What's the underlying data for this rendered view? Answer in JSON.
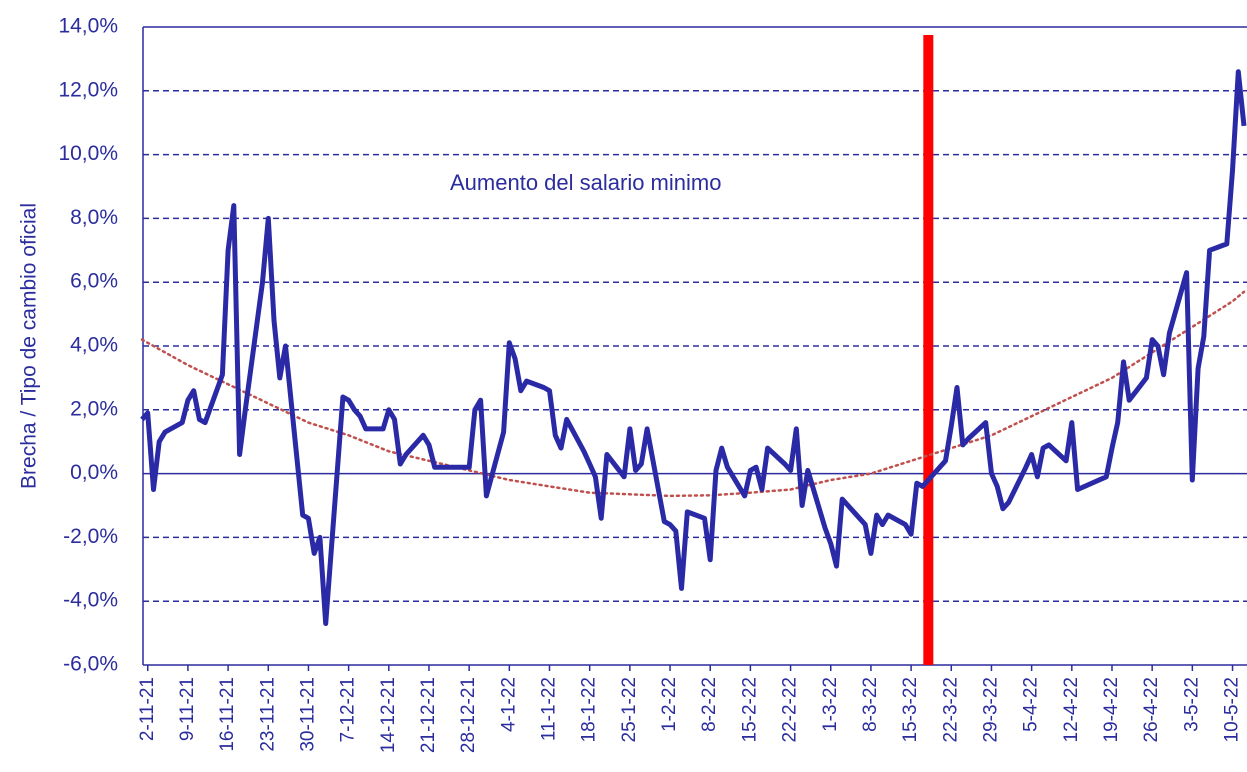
{
  "chart_data": {
    "type": "line",
    "y_label": "Brecha / Tipo de cambio oficial",
    "xlim": [
      "1-11-21",
      "12-5-22"
    ],
    "xticks": [
      "2-11-21",
      "9-11-21",
      "16-11-21",
      "23-11-21",
      "30-11-21",
      "7-12-21",
      "14-12-21",
      "21-12-21",
      "28-12-21",
      "4-1-22",
      "11-1-22",
      "18-1-22",
      "25-1-22",
      "1-2-22",
      "8-2-22",
      "15-2-22",
      "22-2-22",
      "1-3-22",
      "8-3-22",
      "15-3-22",
      "22-3-22",
      "29-3-22",
      "5-4-22",
      "12-4-22",
      "19-4-22",
      "26-4-22",
      "3-5-22",
      "10-5-22"
    ],
    "ylim": [
      -6,
      14
    ],
    "yticks": [
      {
        "value": -6,
        "label": "-6,0%"
      },
      {
        "value": -4,
        "label": "-4,0%"
      },
      {
        "value": -2,
        "label": "-2,0%"
      },
      {
        "value": 0,
        "label": "0,0%"
      },
      {
        "value": 2,
        "label": "2,0%"
      },
      {
        "value": 4,
        "label": "4,0%"
      },
      {
        "value": 6,
        "label": "6,0%"
      },
      {
        "value": 8,
        "label": "8,0%"
      },
      {
        "value": 10,
        "label": "10,0%"
      },
      {
        "value": 12,
        "label": "12,0%"
      },
      {
        "value": 14,
        "label": "14,0%"
      }
    ],
    "grid": true,
    "x": [
      "1-11-21",
      "2-11-21",
      "3-11-21",
      "4-11-21",
      "5-11-21",
      "8-11-21",
      "9-11-21",
      "10-11-21",
      "11-11-21",
      "12-11-21",
      "15-11-21",
      "16-11-21",
      "17-11-21",
      "18-11-21",
      "19-11-21",
      "22-11-21",
      "23-11-21",
      "24-11-21",
      "25-11-21",
      "26-11-21",
      "29-11-21",
      "30-11-21",
      "1-12-21",
      "2-12-21",
      "3-12-21",
      "6-12-21",
      "7-12-21",
      "8-12-21",
      "9-12-21",
      "10-12-21",
      "13-12-21",
      "14-12-21",
      "15-12-21",
      "16-12-21",
      "17-12-21",
      "20-12-21",
      "21-12-21",
      "22-12-21",
      "23-12-21",
      "27-12-21",
      "28-12-21",
      "29-12-21",
      "30-12-21",
      "31-12-21",
      "3-1-22",
      "4-1-22",
      "5-1-22",
      "6-1-22",
      "7-1-22",
      "10-1-22",
      "11-1-22",
      "12-1-22",
      "13-1-22",
      "14-1-22",
      "17-1-22",
      "18-1-22",
      "19-1-22",
      "20-1-22",
      "21-1-22",
      "24-1-22",
      "25-1-22",
      "26-1-22",
      "27-1-22",
      "28-1-22",
      "31-1-22",
      "1-2-22",
      "2-2-22",
      "3-2-22",
      "4-2-22",
      "7-2-22",
      "8-2-22",
      "9-2-22",
      "10-2-22",
      "11-2-22",
      "14-2-22",
      "15-2-22",
      "16-2-22",
      "17-2-22",
      "18-2-22",
      "21-2-22",
      "22-2-22",
      "23-2-22",
      "24-2-22",
      "25-2-22",
      "28-2-22",
      "1-3-22",
      "2-3-22",
      "3-3-22",
      "4-3-22",
      "7-3-22",
      "8-3-22",
      "9-3-22",
      "10-3-22",
      "11-3-22",
      "14-3-22",
      "15-3-22",
      "16-3-22",
      "17-3-22",
      "18-3-22",
      "21-3-22",
      "22-3-22",
      "23-3-22",
      "24-3-22",
      "25-3-22",
      "28-3-22",
      "29-3-22",
      "30-3-22",
      "31-3-22",
      "1-4-22",
      "4-4-22",
      "5-4-22",
      "6-4-22",
      "7-4-22",
      "8-4-22",
      "11-4-22",
      "12-4-22",
      "13-4-22",
      "18-4-22",
      "19-4-22",
      "20-4-22",
      "21-4-22",
      "22-4-22",
      "25-4-22",
      "26-4-22",
      "27-4-22",
      "28-4-22",
      "29-4-22",
      "2-5-22",
      "3-5-22",
      "4-5-22",
      "5-5-22",
      "6-5-22",
      "9-5-22",
      "10-5-22",
      "11-5-22",
      "12-5-22"
    ],
    "series": [
      {
        "color": "#2b2aa6",
        "values": [
          1.7,
          1.9,
          -0.5,
          1.0,
          1.3,
          1.6,
          2.3,
          2.6,
          1.7,
          1.6,
          3.1,
          7.0,
          8.4,
          0.6,
          2.0,
          6.0,
          8.0,
          4.8,
          3.0,
          4.0,
          -1.3,
          -1.4,
          -2.5,
          -2.0,
          -4.7,
          2.4,
          2.3,
          2.0,
          1.8,
          1.4,
          1.4,
          2.0,
          1.7,
          0.3,
          0.6,
          1.2,
          0.9,
          0.2,
          0.2,
          0.2,
          0.2,
          2.0,
          2.3,
          -0.7,
          1.3,
          4.1,
          3.6,
          2.6,
          2.9,
          2.7,
          2.6,
          1.2,
          0.8,
          1.7,
          0.7,
          0.3,
          -0.1,
          -1.4,
          0.6,
          -0.1,
          1.4,
          0.1,
          0.3,
          1.4,
          -1.5,
          -1.6,
          -1.8,
          -3.6,
          -1.2,
          -1.4,
          -2.7,
          0.1,
          0.8,
          0.2,
          -0.7,
          0.1,
          0.2,
          -0.5,
          0.8,
          0.3,
          0.1,
          1.4,
          -1.0,
          0.1,
          -1.7,
          -2.2,
          -2.9,
          -0.8,
          -1.0,
          -1.6,
          -2.5,
          -1.3,
          -1.6,
          -1.3,
          -1.6,
          -1.9,
          -0.3,
          -0.4,
          -0.2,
          0.4,
          1.5,
          2.7,
          0.9,
          1.1,
          1.6,
          0.0,
          -0.4,
          -1.1,
          -0.9,
          0.2,
          0.6,
          -0.1,
          0.8,
          0.9,
          0.4,
          1.6,
          -0.5,
          -0.1,
          0.8,
          1.6,
          3.5,
          2.3,
          3.0,
          4.2,
          4.0,
          3.1,
          4.4,
          6.3,
          -0.2,
          3.3,
          4.3,
          7.0,
          7.2,
          9.5,
          12.6,
          10.9
        ]
      }
    ],
    "trendline": {
      "color": "#c0504d",
      "x": [
        "1-11-21",
        "2-11-21",
        "9-11-21",
        "16-11-21",
        "23-11-21",
        "30-11-21",
        "7-12-21",
        "14-12-21",
        "21-12-21",
        "28-12-21",
        "4-1-22",
        "11-1-22",
        "18-1-22",
        "25-1-22",
        "1-2-22",
        "8-2-22",
        "15-2-22",
        "22-2-22",
        "1-3-22",
        "8-3-22",
        "15-3-22",
        "22-3-22",
        "29-3-22",
        "5-4-22",
        "12-4-22",
        "19-4-22",
        "26-4-22",
        "3-5-22",
        "10-5-22",
        "12-5-22"
      ],
      "values": [
        4.2,
        4.1,
        3.4,
        2.8,
        2.2,
        1.6,
        1.2,
        0.7,
        0.4,
        0.1,
        -0.2,
        -0.4,
        -0.6,
        -0.65,
        -0.7,
        -0.68,
        -0.6,
        -0.5,
        -0.2,
        0.0,
        0.4,
        0.8,
        1.2,
        1.8,
        2.4,
        3.0,
        3.8,
        4.6,
        5.4,
        5.7
      ]
    },
    "event": {
      "x": "18-3-22",
      "color": "#ff0000",
      "label": "Aumento del salario minimo"
    }
  }
}
